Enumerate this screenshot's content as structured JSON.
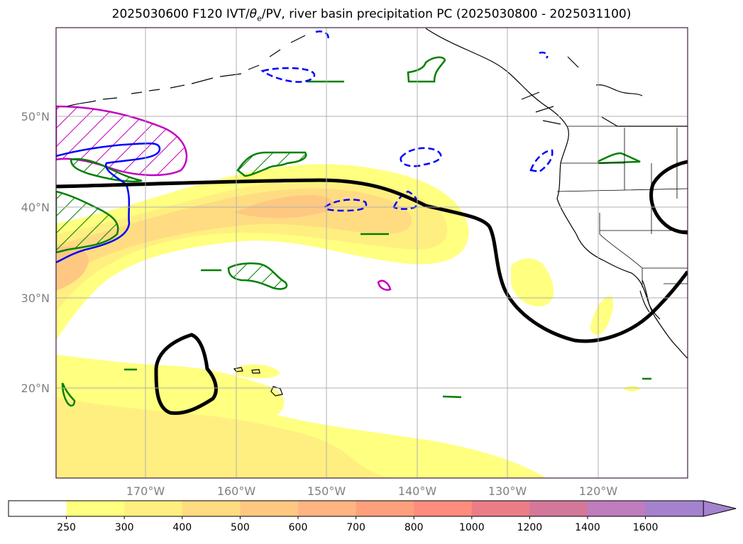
{
  "title": {
    "prefix": "2025030600 F120 IVT/",
    "theta": "θ",
    "sub": "e",
    "suffix": "/PV, river basin precipitation PC (2025030800 - 2025031100)"
  },
  "map": {
    "lon_ticks": [
      "170°W",
      "160°W",
      "150°W",
      "140°W",
      "130°W",
      "120°W"
    ],
    "lat_ticks": [
      "50°N",
      "40°N",
      "30°N",
      "20°N"
    ]
  },
  "colorbar": {
    "labels": [
      "250",
      "300",
      "400",
      "500",
      "600",
      "700",
      "800",
      "1000",
      "1200",
      "1400",
      "1600"
    ],
    "colors": [
      "#ffffff",
      "#ffff80",
      "#ffef80",
      "#ffdc82",
      "#ffc882",
      "#ffb482",
      "#ffa07d",
      "#ff8c7d",
      "#ec7d87",
      "#d3789b",
      "#be7dbe",
      "#a582cd"
    ],
    "extend": "max"
  },
  "colors": {
    "ivt_light": "#ffff80",
    "ivt_mid": "#ffef80",
    "ivt_orange": "#ffdc82",
    "ivt_deep": "#ffc882",
    "theta_e": "#000000",
    "pv_green": "#008000",
    "pv_blue": "#0000ff",
    "pv_magenta": "#c000c0",
    "grid": "#b0b0b0"
  }
}
